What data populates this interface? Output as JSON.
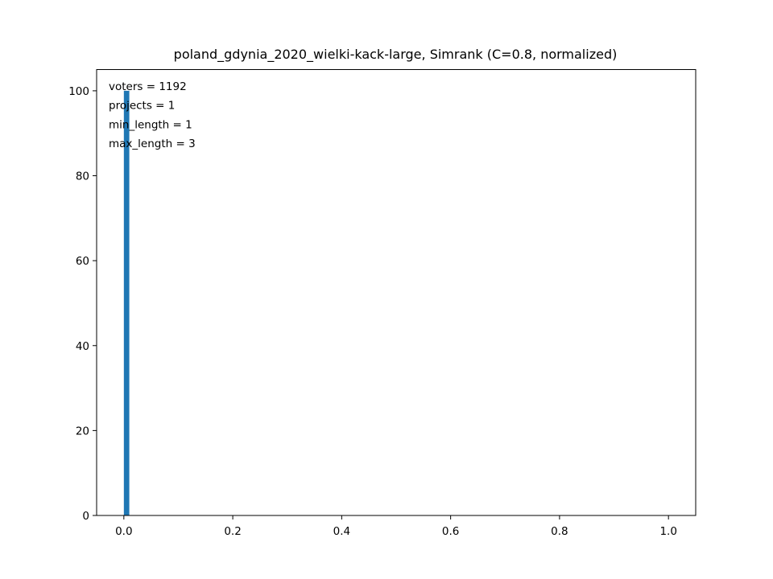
{
  "chart_data": {
    "type": "bar",
    "title": "poland_gdynia_2020_wielki-kack-large, Simrank (C=0.8, normalized)",
    "xlabel": "",
    "ylabel": "",
    "xlim": [
      -0.05,
      1.05
    ],
    "ylim": [
      0,
      105
    ],
    "bin_width": 0.01,
    "bars": [
      {
        "x": 0.0,
        "value": 100
      }
    ],
    "x_ticks": [
      0.0,
      0.2,
      0.4,
      0.6,
      0.8,
      1.0
    ],
    "x_tick_labels": [
      "0.0",
      "0.2",
      "0.4",
      "0.6",
      "0.8",
      "1.0"
    ],
    "y_ticks": [
      0,
      20,
      40,
      60,
      80,
      100
    ],
    "y_tick_labels": [
      "0",
      "20",
      "40",
      "60",
      "80",
      "100"
    ],
    "annotations": [
      "voters = 1192",
      "projects = 1",
      "min_length = 1",
      "max_length = 3"
    ],
    "bar_color": "#1f77b4",
    "grid": false,
    "legend": "none"
  }
}
